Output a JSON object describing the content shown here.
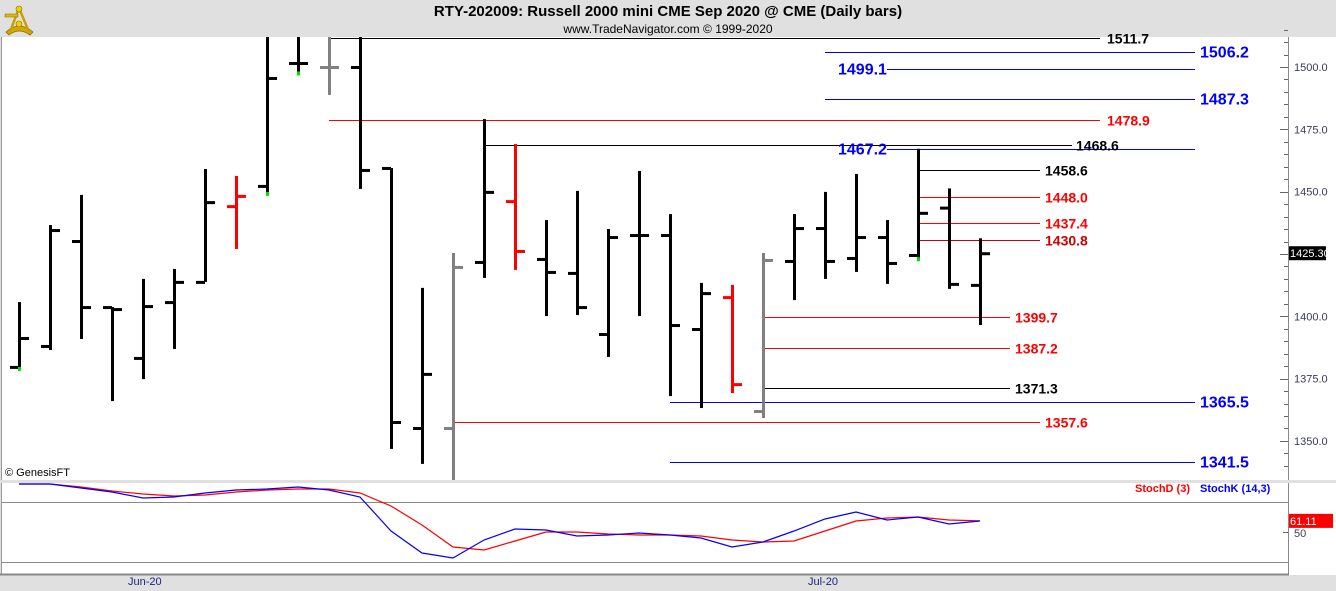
{
  "header": {
    "title": "RTY-202009:  Russell 2000 mini CME Sep 2020 @ CME  (Daily bars)",
    "subtitle": "www.TradeNavigator.com © 1999-2020",
    "logo": "sextant-logo"
  },
  "copyright": "© GenesisFT",
  "chart_data": [
    {
      "type": "ohlc",
      "title": "RTY-202009:  Russell 2000 mini CME Sep 2020 @ CME  (Daily bars)",
      "ylim": [
        1332,
        1518
      ],
      "y_ticks": [
        "1500.0",
        "1475.0",
        "1450.0",
        "1425.0",
        "1400.0",
        "1375.0",
        "1350.0"
      ],
      "x_tick_labels": [
        {
          "label": "Jun-20",
          "bar": 4
        },
        {
          "label": "Jul-20",
          "bar": 26
        }
      ],
      "last_price_label": "1425.30",
      "last_price": 1425.3,
      "colors": {
        "up": "#000000",
        "down_flag": "#ff0000",
        "neutral_flag": "#808080",
        "marker": "#00e000"
      },
      "bars": [
        {
          "o": 1379.7,
          "h": 1405.7,
          "l": 1378.5,
          "c": 1391.3,
          "color": "#000000",
          "marker": true
        },
        {
          "o": 1388.1,
          "h": 1436.6,
          "l": 1386.5,
          "c": 1434.6,
          "color": "#000000"
        },
        {
          "o": 1430.2,
          "h": 1448.7,
          "l": 1390.9,
          "c": 1403.7,
          "color": "#000000"
        },
        {
          "o": 1403.7,
          "h": 1403.7,
          "l": 1366.0,
          "c": 1402.9,
          "color": "#000000"
        },
        {
          "o": 1383.3,
          "h": 1415.0,
          "l": 1374.8,
          "c": 1404.1,
          "color": "#000000"
        },
        {
          "o": 1405.7,
          "h": 1419.0,
          "l": 1386.9,
          "c": 1413.8,
          "color": "#000000"
        },
        {
          "o": 1413.8,
          "h": 1459.1,
          "l": 1413.8,
          "c": 1445.8,
          "color": "#000000"
        },
        {
          "o": 1444.2,
          "h": 1456.3,
          "l": 1427.0,
          "c": 1448.3,
          "color": "#ff0000"
        },
        {
          "o": 1452.3,
          "h": 1525.0,
          "l": 1448.7,
          "c": 1495.6,
          "color": "#000000",
          "marker": true
        },
        {
          "o": 1501.6,
          "h": 1525.0,
          "l": 1497.0,
          "c": 1501.6,
          "color": "#000000",
          "marker": true
        },
        {
          "o": 1500.0,
          "h": 1525.0,
          "l": 1488.8,
          "c": 1500.0,
          "color": "#808080"
        },
        {
          "o": 1500.0,
          "h": 1525.0,
          "l": 1451.1,
          "c": 1458.7,
          "color": "#000000"
        },
        {
          "o": 1459.5,
          "h": 1459.5,
          "l": 1346.8,
          "c": 1357.6,
          "color": "#000000"
        },
        {
          "o": 1355.2,
          "h": 1411.4,
          "l": 1340.8,
          "c": 1376.9,
          "color": "#000000"
        },
        {
          "o": 1355.2,
          "h": 1425.4,
          "l": 1334.3,
          "c": 1419.8,
          "color": "#808080"
        },
        {
          "o": 1421.8,
          "h": 1479.1,
          "l": 1415.4,
          "c": 1449.9,
          "color": "#000000"
        },
        {
          "o": 1446.2,
          "h": 1469.1,
          "l": 1418.6,
          "c": 1426.2,
          "color": "#ff0000"
        },
        {
          "o": 1423.0,
          "h": 1438.6,
          "l": 1400.1,
          "c": 1417.8,
          "color": "#000000"
        },
        {
          "o": 1417.4,
          "h": 1450.3,
          "l": 1400.5,
          "c": 1403.7,
          "color": "#000000"
        },
        {
          "o": 1392.9,
          "h": 1435.0,
          "l": 1383.7,
          "c": 1431.8,
          "color": "#000000"
        },
        {
          "o": 1432.6,
          "h": 1458.3,
          "l": 1400.1,
          "c": 1432.6,
          "color": "#000000"
        },
        {
          "o": 1432.6,
          "h": 1441.0,
          "l": 1368.0,
          "c": 1396.5,
          "color": "#000000"
        },
        {
          "o": 1394.9,
          "h": 1413.4,
          "l": 1363.2,
          "c": 1409.3,
          "color": "#000000"
        },
        {
          "o": 1407.7,
          "h": 1412.6,
          "l": 1369.2,
          "c": 1372.8,
          "color": "#ff0000"
        },
        {
          "o": 1362.0,
          "h": 1425.4,
          "l": 1359.2,
          "c": 1422.6,
          "color": "#808080"
        },
        {
          "o": 1422.2,
          "h": 1441.0,
          "l": 1406.5,
          "c": 1435.4,
          "color": "#000000"
        },
        {
          "o": 1435.4,
          "h": 1449.9,
          "l": 1415.0,
          "c": 1422.2,
          "color": "#000000"
        },
        {
          "o": 1423.4,
          "h": 1457.1,
          "l": 1417.8,
          "c": 1431.8,
          "color": "#000000"
        },
        {
          "o": 1431.8,
          "h": 1438.6,
          "l": 1413.0,
          "c": 1421.4,
          "color": "#000000"
        },
        {
          "o": 1424.6,
          "h": 1467.2,
          "l": 1422.5,
          "c": 1441.5,
          "color": "#000000",
          "marker": true
        },
        {
          "o": 1443.6,
          "h": 1451.3,
          "l": 1411.0,
          "c": 1413.0,
          "color": "#000000"
        },
        {
          "o": 1412.6,
          "h": 1431.3,
          "l": 1396.5,
          "c": 1425.3,
          "color": "#000000"
        }
      ],
      "levels": [
        {
          "value": 1511.7,
          "label": "1511.7",
          "color": "#000000"
        },
        {
          "value": 1506.2,
          "label": "1506.2",
          "color": "#0000ff"
        },
        {
          "value": 1499.1,
          "label": "1499.1",
          "color": "#0000ff"
        },
        {
          "value": 1487.3,
          "label": "1487.3",
          "color": "#0000ff"
        },
        {
          "value": 1478.9,
          "label": "1478.9",
          "color": "#ff0000"
        },
        {
          "value": 1468.6,
          "label": "1468.6",
          "color": "#000000"
        },
        {
          "value": 1467.2,
          "label": "1467.2",
          "color": "#0000ff"
        },
        {
          "value": 1458.6,
          "label": "1458.6",
          "color": "#000000"
        },
        {
          "value": 1448.0,
          "label": "1448.0",
          "color": "#ff0000"
        },
        {
          "value": 1437.4,
          "label": "1437.4",
          "color": "#ff0000"
        },
        {
          "value": 1430.8,
          "label": "1430.8",
          "color": "#cc0000"
        },
        {
          "value": 1399.7,
          "label": "1399.7",
          "color": "#ff0000"
        },
        {
          "value": 1387.2,
          "label": "1387.2",
          "color": "#ff0000"
        },
        {
          "value": 1371.3,
          "label": "1371.3",
          "color": "#000000"
        },
        {
          "value": 1365.5,
          "label": "1365.5",
          "color": "#0000ff"
        },
        {
          "value": 1357.6,
          "label": "1357.6",
          "color": "#ff0000"
        },
        {
          "value": 1341.5,
          "label": "1341.5",
          "color": "#0000ff"
        }
      ]
    },
    {
      "type": "line",
      "ylim": [
        0,
        100
      ],
      "y_ticks": [
        "50"
      ],
      "reference_lines": [
        80,
        20
      ],
      "last_value_label": "61.11",
      "series": [
        {
          "name": "StochD (3)",
          "color": "#ff0000",
          "values": [
            98,
            98,
            95,
            91,
            88,
            86,
            87,
            90,
            92,
            93,
            93,
            89,
            76,
            57,
            35,
            32,
            41,
            50,
            50,
            48,
            47,
            47,
            46,
            42,
            40,
            41,
            51,
            61,
            64,
            65,
            62,
            61.11
          ]
        },
        {
          "name": "StochK (14,3)",
          "color": "#0000ff",
          "values": [
            98,
            98,
            94,
            90,
            84,
            85,
            89,
            92,
            93,
            95,
            92,
            85,
            51,
            29,
            24,
            42,
            53,
            52,
            46,
            47,
            49,
            47,
            44,
            35,
            40,
            51,
            63,
            70,
            62,
            65,
            58,
            61
          ]
        }
      ]
    }
  ]
}
